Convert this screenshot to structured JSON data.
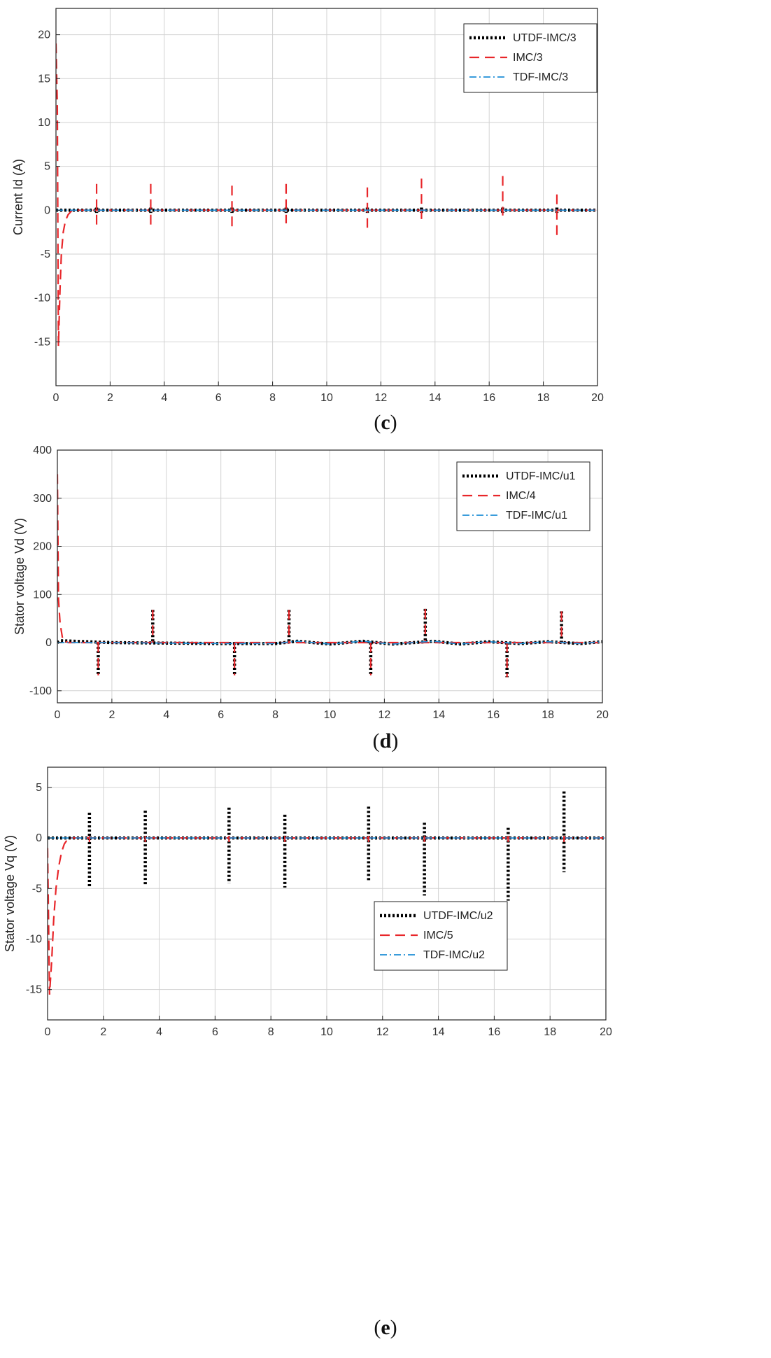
{
  "chart_data": [
    {
      "panel": "c",
      "type": "line",
      "ylabel": "Current Id (A)",
      "xlim": [
        0,
        20
      ],
      "ylim": [
        -20,
        23
      ],
      "xticks": [
        0,
        2,
        4,
        6,
        8,
        10,
        12,
        14,
        16,
        18,
        20
      ],
      "yticks": [
        -15,
        -10,
        -5,
        0,
        5,
        10,
        15,
        20
      ],
      "grid": true,
      "legend_position": "top-right",
      "legend": [
        "UTDF-IMC/3",
        "IMC/3",
        "TDF-IMC/3"
      ],
      "disturbance_times": [
        1.5,
        3.5,
        6.5,
        8.5,
        11.5,
        13.5,
        16.5,
        18.5
      ],
      "series": [
        {
          "name": "UTDF-IMC/3",
          "color": "#000000",
          "style": "dotted",
          "points": [
            [
              0,
              0
            ],
            [
              20,
              0
            ]
          ],
          "spikes": [
            [
              1.5,
              0.3,
              -0.3
            ],
            [
              3.5,
              0.3,
              -0.3
            ],
            [
              6.5,
              0.3,
              -0.3
            ],
            [
              8.5,
              0.3,
              -0.3
            ],
            [
              11.5,
              0.3,
              -0.3
            ],
            [
              13.5,
              0.3,
              -0.3
            ],
            [
              16.5,
              0.3,
              -0.3
            ],
            [
              18.5,
              0.3,
              -0.3
            ]
          ]
        },
        {
          "name": "IMC/3",
          "color": "#e8262a",
          "style": "dashed",
          "points": [
            [
              0,
              19
            ],
            [
              0.05,
              12
            ],
            [
              0.09,
              -15.5
            ],
            [
              0.15,
              -9
            ],
            [
              0.2,
              -5
            ],
            [
              0.27,
              -2.5
            ],
            [
              0.35,
              -1.2
            ],
            [
              0.45,
              -0.5
            ],
            [
              0.6,
              0
            ],
            [
              20,
              0
            ]
          ],
          "spikes": [
            [
              1.5,
              3,
              -1.7
            ],
            [
              3.5,
              3,
              -1.8
            ],
            [
              6.5,
              2.8,
              -2
            ],
            [
              8.5,
              3,
              -1.5
            ],
            [
              11.5,
              2.6,
              -2
            ],
            [
              13.5,
              3.6,
              -1
            ],
            [
              16.5,
              3.9,
              -0.6
            ],
            [
              18.5,
              1.8,
              -3.1
            ]
          ]
        },
        {
          "name": "TDF-IMC/3",
          "color": "#1f8fd6",
          "style": "dashdot",
          "points": [
            [
              0,
              0
            ],
            [
              20,
              0
            ]
          ],
          "spikes": []
        }
      ]
    },
    {
      "panel": "d",
      "type": "line",
      "ylabel": "Stator voltage Vd (V)",
      "xlim": [
        0,
        20
      ],
      "ylim": [
        -125,
        400
      ],
      "xticks": [
        0,
        2,
        4,
        6,
        8,
        10,
        12,
        14,
        16,
        18,
        20
      ],
      "yticks": [
        -100,
        0,
        100,
        200,
        300,
        400
      ],
      "grid": true,
      "legend_position": "top-right",
      "legend": [
        "UTDF-IMC/u1",
        "IMC/4",
        "TDF-IMC/u1"
      ],
      "disturbance_times": [
        1.5,
        3.5,
        6.5,
        8.5,
        11.5,
        13.5,
        16.5,
        18.5
      ],
      "series": [
        {
          "name": "UTDF-IMC/u1",
          "color": "#000000",
          "style": "dotted",
          "points": [
            [
              0,
              0
            ],
            [
              0.1,
              4
            ],
            [
              2,
              0
            ],
            [
              6,
              -2
            ],
            [
              8,
              -2
            ],
            [
              8.8,
              3
            ],
            [
              10,
              -3
            ],
            [
              11.2,
              3
            ],
            [
              12.3,
              -3
            ],
            [
              13.8,
              3
            ],
            [
              14.8,
              -3
            ],
            [
              15.8,
              2
            ],
            [
              17,
              -2
            ],
            [
              18,
              2
            ],
            [
              19.2,
              -2
            ],
            [
              20,
              2
            ]
          ],
          "spikes": [
            [
              1.5,
              0,
              -68
            ],
            [
              3.5,
              68,
              0
            ],
            [
              6.5,
              0,
              -68
            ],
            [
              8.5,
              68,
              0
            ],
            [
              11.5,
              0,
              -68
            ],
            [
              13.5,
              70,
              0
            ],
            [
              16.5,
              0,
              -72
            ],
            [
              18.5,
              65,
              0
            ]
          ]
        },
        {
          "name": "IMC/4",
          "color": "#e8262a",
          "style": "dashed",
          "points": [
            [
              0,
              350
            ],
            [
              0.04,
              90
            ],
            [
              0.1,
              40
            ],
            [
              0.2,
              5
            ],
            [
              0.4,
              0
            ],
            [
              20,
              0
            ]
          ],
          "spikes": [
            [
              1.5,
              0,
              -68
            ],
            [
              3.5,
              68,
              0
            ],
            [
              6.5,
              0,
              -68
            ],
            [
              8.5,
              68,
              0
            ],
            [
              11.5,
              0,
              -68
            ],
            [
              13.5,
              70,
              0
            ],
            [
              16.5,
              0,
              -72
            ],
            [
              18.5,
              65,
              0
            ]
          ]
        },
        {
          "name": "TDF-IMC/u1",
          "color": "#1f8fd6",
          "style": "dashdot",
          "points": [
            [
              0,
              0
            ],
            [
              2,
              0
            ],
            [
              6,
              -2
            ],
            [
              8,
              -2
            ],
            [
              8.8,
              3
            ],
            [
              10,
              -3
            ],
            [
              11.2,
              3
            ],
            [
              12.3,
              -3
            ],
            [
              13.8,
              3
            ],
            [
              14.8,
              -3
            ],
            [
              15.8,
              2
            ],
            [
              17,
              -2
            ],
            [
              18,
              2
            ],
            [
              19.2,
              -2
            ],
            [
              20,
              2
            ]
          ],
          "spikes": []
        }
      ]
    },
    {
      "panel": "e",
      "type": "line",
      "ylabel": "Stator voltage Vq (V)",
      "xlim": [
        0,
        20
      ],
      "ylim": [
        -18,
        7
      ],
      "xticks": [
        0,
        2,
        4,
        6,
        8,
        10,
        12,
        14,
        16,
        18,
        20
      ],
      "yticks": [
        -15,
        -10,
        -5,
        0,
        5
      ],
      "grid": true,
      "legend_position": "middle-right",
      "legend": [
        "UTDF-IMC/u2",
        "IMC/5",
        "TDF-IMC/u2"
      ],
      "disturbance_times": [
        1.5,
        3.5,
        6.5,
        8.5,
        11.5,
        13.5,
        16.5,
        18.5
      ],
      "series": [
        {
          "name": "UTDF-IMC/u2",
          "color": "#000000",
          "style": "dotted",
          "points": [
            [
              0,
              0
            ],
            [
              20,
              0
            ]
          ],
          "spikes": [
            [
              1.5,
              2.5,
              -4.8
            ],
            [
              3.5,
              2.7,
              -4.6
            ],
            [
              6.5,
              3,
              -4.5
            ],
            [
              8.5,
              2.3,
              -4.9
            ],
            [
              11.5,
              3.1,
              -4.3
            ],
            [
              13.5,
              1.5,
              -5.7
            ],
            [
              16.5,
              1,
              -6.2
            ],
            [
              18.5,
              4.6,
              -3.4
            ]
          ]
        },
        {
          "name": "IMC/5",
          "color": "#e8262a",
          "style": "dashed",
          "points": [
            [
              0,
              -1
            ],
            [
              0.07,
              -15.5
            ],
            [
              0.15,
              -12
            ],
            [
              0.22,
              -8
            ],
            [
              0.3,
              -5
            ],
            [
              0.4,
              -2.8
            ],
            [
              0.5,
              -1.4
            ],
            [
              0.6,
              -0.6
            ],
            [
              0.75,
              0
            ],
            [
              20,
              0
            ]
          ],
          "spikes": [
            [
              1.5,
              0.2,
              -0.4
            ],
            [
              3.5,
              0.2,
              -0.4
            ],
            [
              6.5,
              0.2,
              -0.4
            ],
            [
              8.5,
              0.2,
              -0.4
            ],
            [
              11.5,
              0.2,
              -0.4
            ],
            [
              13.5,
              0.2,
              -0.4
            ],
            [
              16.5,
              0.2,
              -0.4
            ],
            [
              18.5,
              0.2,
              -0.4
            ]
          ]
        },
        {
          "name": "TDF-IMC/u2",
          "color": "#1f8fd6",
          "style": "dashdot",
          "points": [
            [
              0,
              0
            ],
            [
              20,
              0
            ]
          ],
          "spikes": []
        }
      ]
    }
  ],
  "captions": [
    {
      "open": "(",
      "letter": "c",
      "close": ")"
    },
    {
      "open": "(",
      "letter": "d",
      "close": ")"
    },
    {
      "open": "(",
      "letter": "e",
      "close": ")"
    }
  ]
}
